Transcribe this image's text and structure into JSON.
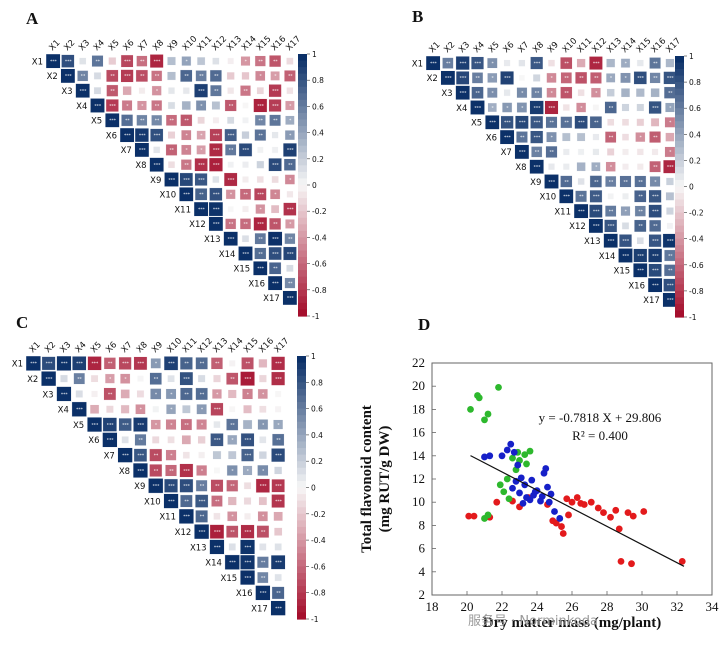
{
  "panels": {
    "A": "A",
    "B": "B",
    "C": "C",
    "D": "D"
  },
  "watermark": "服务号 · Norminkoda",
  "colors": {
    "negative": "#a50f2d",
    "neutral": "#f7f7f7",
    "positive": "#0b3068",
    "scatter_red": "#e31a1c",
    "scatter_green": "#2db82d",
    "scatter_blue": "#1620c8"
  },
  "chart_data": [
    {
      "type": "heatmap",
      "panel": "A",
      "variables": [
        "X1",
        "X2",
        "X3",
        "X4",
        "X5",
        "X6",
        "X7",
        "X8",
        "X9",
        "X10",
        "X11",
        "X12",
        "X13",
        "X14",
        "X15",
        "X16",
        "X17"
      ],
      "colorbar_ticks": [
        1,
        0.8,
        0.6,
        0.4,
        0.2,
        0,
        -0.2,
        -0.4,
        -0.6,
        -0.8,
        -1
      ],
      "value_range": [
        -1,
        1
      ],
      "significance_marks": true
    },
    {
      "type": "heatmap",
      "panel": "B",
      "variables": [
        "X1",
        "X2",
        "X3",
        "X4",
        "X5",
        "X6",
        "X7",
        "X8",
        "X9",
        "X10",
        "X11",
        "X12",
        "X13",
        "X14",
        "X15",
        "X16",
        "X17"
      ],
      "colorbar_ticks": [
        1,
        0.8,
        0.6,
        0.4,
        0.2,
        0,
        -0.2,
        -0.4,
        -0.6,
        -0.8,
        -1
      ],
      "value_range": [
        -1,
        1
      ],
      "significance_marks": true
    },
    {
      "type": "heatmap",
      "panel": "C",
      "variables": [
        "X1",
        "X2",
        "X3",
        "X4",
        "X5",
        "X6",
        "X7",
        "X8",
        "X9",
        "X10",
        "X11",
        "X12",
        "X13",
        "X14",
        "X15",
        "X16",
        "X17"
      ],
      "colorbar_ticks": [
        1,
        0.8,
        0.6,
        0.4,
        0.2,
        0,
        -0.2,
        -0.4,
        -0.6,
        -0.8,
        -1
      ],
      "value_range": [
        -1,
        1
      ],
      "significance_marks": true
    },
    {
      "type": "scatter",
      "panel": "D",
      "xlabel": "Dry matter mass (mg/plant)",
      "ylabel_line1": "Total flavonoid content",
      "ylabel_line2": "(mg RUT/g DW)",
      "xlim": [
        18,
        34
      ],
      "ylim": [
        2,
        22
      ],
      "xticks": [
        18,
        20,
        22,
        24,
        26,
        28,
        30,
        32,
        34
      ],
      "yticks": [
        2,
        4,
        6,
        8,
        10,
        12,
        14,
        16,
        18,
        20,
        22
      ],
      "equation": "y = -0.7818 X + 29.806",
      "r_squared": "R² = 0.400",
      "trendline": {
        "slope": -0.7818,
        "intercept": 29.806,
        "x_range": [
          20.2,
          32.4
        ]
      },
      "series": [
        {
          "color": "red",
          "points": [
            [
              20.1,
              8.8
            ],
            [
              20.4,
              8.8
            ],
            [
              21.3,
              8.7
            ],
            [
              21.7,
              10.0
            ],
            [
              22.6,
              10.1
            ],
            [
              23.0,
              9.6
            ],
            [
              23.5,
              10.4
            ],
            [
              24.6,
              9.8
            ],
            [
              24.9,
              8.4
            ],
            [
              25.1,
              8.2
            ],
            [
              25.4,
              7.9
            ],
            [
              25.8,
              8.9
            ],
            [
              25.5,
              7.3
            ],
            [
              25.7,
              10.3
            ],
            [
              26.0,
              10.0
            ],
            [
              26.3,
              10.4
            ],
            [
              26.5,
              9.9
            ],
            [
              26.7,
              9.8
            ],
            [
              27.1,
              10.0
            ],
            [
              27.5,
              9.5
            ],
            [
              27.8,
              9.1
            ],
            [
              28.2,
              8.7
            ],
            [
              28.5,
              9.3
            ],
            [
              28.7,
              7.7
            ],
            [
              29.2,
              9.1
            ],
            [
              29.5,
              8.8
            ],
            [
              30.1,
              9.2
            ],
            [
              28.8,
              4.9
            ],
            [
              29.4,
              4.7
            ],
            [
              32.3,
              4.9
            ]
          ]
        },
        {
          "color": "green",
          "points": [
            [
              20.2,
              18.0
            ],
            [
              20.6,
              19.2
            ],
            [
              20.7,
              19.0
            ],
            [
              21.0,
              17.1
            ],
            [
              21.2,
              17.6
            ],
            [
              21.8,
              19.9
            ],
            [
              21.0,
              8.6
            ],
            [
              21.2,
              8.9
            ],
            [
              21.9,
              11.5
            ],
            [
              22.3,
              12.0
            ],
            [
              22.6,
              13.8
            ],
            [
              22.9,
              14.3
            ],
            [
              23.0,
              13.6
            ],
            [
              23.3,
              14.1
            ],
            [
              23.6,
              14.4
            ],
            [
              23.4,
              13.3
            ],
            [
              22.8,
              12.8
            ],
            [
              22.1,
              10.9
            ],
            [
              22.4,
              10.3
            ]
          ]
        },
        {
          "color": "blue",
          "points": [
            [
              21.0,
              13.9
            ],
            [
              21.3,
              14.0
            ],
            [
              22.0,
              14.0
            ],
            [
              22.3,
              14.5
            ],
            [
              22.5,
              15.0
            ],
            [
              22.7,
              14.3
            ],
            [
              22.9,
              13.2
            ],
            [
              22.8,
              11.8
            ],
            [
              23.1,
              12.1
            ],
            [
              23.3,
              11.5
            ],
            [
              23.0,
              10.8
            ],
            [
              23.4,
              10.4
            ],
            [
              23.2,
              9.9
            ],
            [
              23.6,
              10.2
            ],
            [
              23.8,
              10.6
            ],
            [
              24.0,
              11.0
            ],
            [
              24.2,
              10.1
            ],
            [
              24.3,
              10.5
            ],
            [
              24.4,
              12.5
            ],
            [
              24.5,
              12.9
            ],
            [
              24.6,
              11.3
            ],
            [
              24.8,
              10.7
            ],
            [
              24.7,
              10.0
            ],
            [
              25.0,
              9.2
            ],
            [
              25.3,
              8.6
            ],
            [
              23.9,
              10.9
            ],
            [
              23.7,
              11.9
            ],
            [
              22.6,
              11.2
            ]
          ]
        }
      ]
    }
  ]
}
